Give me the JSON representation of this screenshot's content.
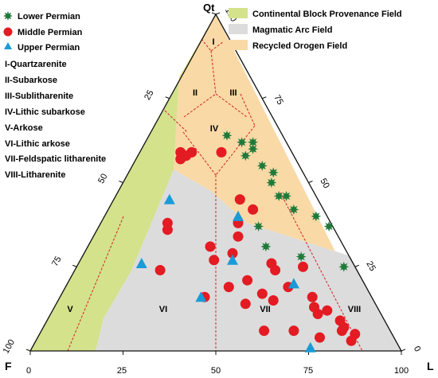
{
  "colors": {
    "continental": "#d3e28b",
    "magmatic": "#dcdcdc",
    "recycled": "#f9d9a6",
    "outline": "#111111",
    "field_boundary": "#d2232a",
    "lower": "#1f7a3a",
    "middle": "#e31b23",
    "upper": "#1a9bd7"
  },
  "apex_labels": {
    "top": "Qt",
    "left": "F",
    "right": "L"
  },
  "symbol_legend": [
    {
      "key": "lower",
      "label": "Lower Permian",
      "icon": "green-star-icon"
    },
    {
      "key": "middle",
      "label": "Middle Permian",
      "icon": "red-circle-icon"
    },
    {
      "key": "upper",
      "label": "Upper Permian",
      "icon": "blue-triangle-icon"
    }
  ],
  "field_legend": [
    {
      "key": "continental",
      "label": "Continental Block Provenance Field"
    },
    {
      "key": "magmatic",
      "label": "Magmatic Arc Field"
    },
    {
      "key": "recycled",
      "label": "Recycled Orogen Field"
    }
  ],
  "classification_key": [
    "I-Quartzarenite",
    "II-Subarkose",
    "III-Sublitharenite",
    "IV-Lithic subarkose",
    "V-Arkose",
    "VI-Lithic arkose",
    "VII-Feldspatic litharenite",
    "VIII-Litharenite"
  ],
  "region_labels": [
    "I",
    "II",
    "III",
    "IV",
    "V",
    "VI",
    "VII",
    "VIII"
  ],
  "ticks": {
    "bottom": [
      "0",
      "25",
      "50",
      "75",
      "100"
    ],
    "left": [
      "100",
      "75",
      "50",
      "25"
    ],
    "right": [
      "100",
      "75",
      "50",
      "25",
      "0"
    ]
  },
  "chart_data": {
    "type": "scatter",
    "coordinates": "ternary percent: Qt (top apex), F (left apex), L (right apex)",
    "series": [
      {
        "name": "Lower Permian",
        "points": [
          {
            "Qt": 64,
            "F": 15,
            "L": 21
          },
          {
            "Qt": 62,
            "F": 12,
            "L": 26
          },
          {
            "Qt": 60,
            "F": 10,
            "L": 30
          },
          {
            "Qt": 62,
            "F": 9,
            "L": 29
          },
          {
            "Qt": 58,
            "F": 13,
            "L": 29
          },
          {
            "Qt": 55,
            "F": 10,
            "L": 35
          },
          {
            "Qt": 53,
            "F": 8,
            "L": 39
          },
          {
            "Qt": 50,
            "F": 10,
            "L": 40
          },
          {
            "Qt": 46,
            "F": 10,
            "L": 44
          },
          {
            "Qt": 46,
            "F": 8,
            "L": 46
          },
          {
            "Qt": 42,
            "F": 8,
            "L": 50
          },
          {
            "Qt": 40,
            "F": 3,
            "L": 57
          },
          {
            "Qt": 37,
            "F": 20,
            "L": 43
          },
          {
            "Qt": 31,
            "F": 21,
            "L": 48
          },
          {
            "Qt": 28,
            "F": 13,
            "L": 59
          },
          {
            "Qt": 25,
            "F": 3,
            "L": 72
          },
          {
            "Qt": 37,
            "F": 1,
            "L": 62
          }
        ]
      },
      {
        "name": "Middle Permian",
        "points": [
          {
            "Qt": 59,
            "F": 30,
            "L": 11
          },
          {
            "Qt": 57,
            "F": 31,
            "L": 12
          },
          {
            "Qt": 58,
            "F": 29,
            "L": 13
          },
          {
            "Qt": 59,
            "F": 27,
            "L": 14
          },
          {
            "Qt": 59,
            "F": 19,
            "L": 22
          },
          {
            "Qt": 45,
            "F": 21,
            "L": 34
          },
          {
            "Qt": 42,
            "F": 19,
            "L": 39
          },
          {
            "Qt": 38,
            "F": 25,
            "L": 37
          },
          {
            "Qt": 34,
            "F": 27,
            "L": 39
          },
          {
            "Qt": 38,
            "F": 44,
            "L": 18
          },
          {
            "Qt": 36,
            "F": 45,
            "L": 19
          },
          {
            "Qt": 31,
            "F": 36,
            "L": 33
          },
          {
            "Qt": 27,
            "F": 37,
            "L": 36
          },
          {
            "Qt": 29,
            "F": 31,
            "L": 40
          },
          {
            "Qt": 26,
            "F": 22,
            "L": 52
          },
          {
            "Qt": 24,
            "F": 53,
            "L": 23
          },
          {
            "Qt": 21,
            "F": 31,
            "L": 48
          },
          {
            "Qt": 19,
            "F": 37,
            "L": 44
          },
          {
            "Qt": 17,
            "F": 29,
            "L": 54
          },
          {
            "Qt": 15,
            "F": 27,
            "L": 58
          },
          {
            "Qt": 16,
            "F": 45,
            "L": 39
          },
          {
            "Qt": 14,
            "F": 35,
            "L": 51
          },
          {
            "Qt": 25,
            "F": 14,
            "L": 61
          },
          {
            "Qt": 24,
            "F": 22,
            "L": 54
          },
          {
            "Qt": 19,
            "F": 21,
            "L": 60
          },
          {
            "Qt": 16,
            "F": 16,
            "L": 68
          },
          {
            "Qt": 13,
            "F": 17,
            "L": 70
          },
          {
            "Qt": 11,
            "F": 17,
            "L": 72
          },
          {
            "Qt": 12,
            "F": 14,
            "L": 74
          },
          {
            "Qt": 9,
            "F": 12,
            "L": 79
          },
          {
            "Qt": 7,
            "F": 12,
            "L": 81
          },
          {
            "Qt": 6,
            "F": 13,
            "L": 81
          },
          {
            "Qt": 4,
            "F": 20,
            "L": 76
          },
          {
            "Qt": 5,
            "F": 10,
            "L": 85
          },
          {
            "Qt": 3,
            "F": 12,
            "L": 85
          },
          {
            "Qt": 6,
            "F": 34,
            "L": 60
          },
          {
            "Qt": 6,
            "F": 26,
            "L": 68
          }
        ]
      },
      {
        "name": "Upper Permian",
        "points": [
          {
            "Qt": 45,
            "F": 40,
            "L": 15
          },
          {
            "Qt": 26,
            "F": 57,
            "L": 17
          },
          {
            "Qt": 16,
            "F": 46,
            "L": 38
          },
          {
            "Qt": 27,
            "F": 32,
            "L": 41
          },
          {
            "Qt": 40,
            "F": 24,
            "L": 36
          },
          {
            "Qt": 20,
            "F": 19,
            "L": 61
          },
          {
            "Qt": 1,
            "F": 24,
            "L": 75
          }
        ]
      }
    ]
  }
}
